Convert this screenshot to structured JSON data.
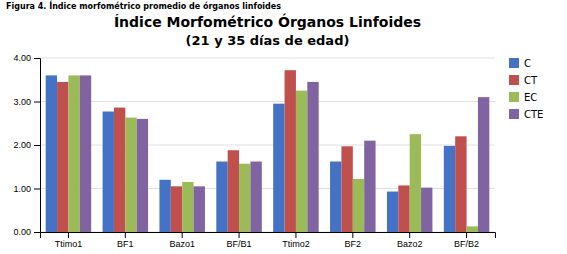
{
  "chart_data": {
    "type": "bar",
    "title": "Índice Morfométrico Órganos Linfoides",
    "subtitle": "(21 y 35 días de edad)",
    "annotations": [
      "Figura 4. Índice morfométrico promedio de órganos linfoides"
    ],
    "categories": [
      "Ttimo1",
      "BF1",
      "Bazo1",
      "BF/B1",
      "Ttimo2",
      "BF2",
      "Bazo2",
      "BF/B2"
    ],
    "series": [
      {
        "name": "C",
        "color": "#4472C4",
        "values": [
          3.6,
          2.77,
          1.2,
          1.62,
          2.95,
          1.62,
          0.93,
          1.98
        ]
      },
      {
        "name": "CT",
        "color": "#C0504D",
        "values": [
          3.45,
          2.86,
          1.05,
          1.88,
          3.72,
          1.97,
          1.07,
          2.2
        ]
      },
      {
        "name": "EC",
        "color": "#9BBB59",
        "values": [
          3.6,
          2.63,
          1.15,
          1.57,
          3.25,
          1.22,
          2.25,
          0.13
        ]
      },
      {
        "name": "CTE",
        "color": "#8064A2",
        "values": [
          3.6,
          2.6,
          1.05,
          1.62,
          3.45,
          2.1,
          1.02,
          3.1
        ]
      }
    ],
    "ylim": [
      0.0,
      4.0
    ],
    "yticks": [
      {
        "value": 0,
        "label": "0.00"
      },
      {
        "value": 1,
        "label": "1.00"
      },
      {
        "value": 2,
        "label": "2.00"
      },
      {
        "value": 3,
        "label": "3.00"
      },
      {
        "value": 4,
        "label": "4.00"
      }
    ],
    "grid": true,
    "legend": "right"
  }
}
